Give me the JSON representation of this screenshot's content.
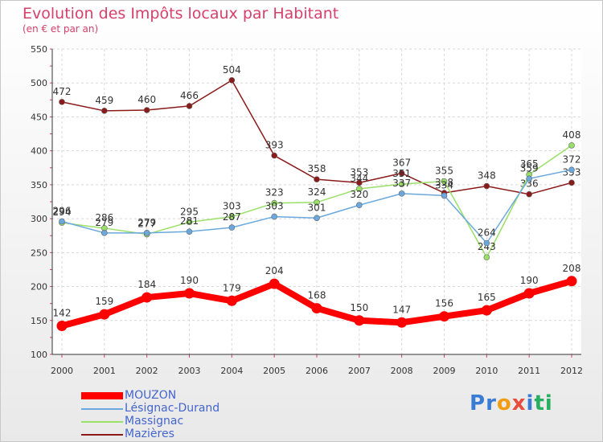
{
  "chart_data": {
    "type": "line",
    "title": "Evolution des Impôts locaux par Habitant",
    "subtitle": "(en € et par an)",
    "categories": [
      "2000",
      "2001",
      "2002",
      "2003",
      "2004",
      "2005",
      "2006",
      "2007",
      "2008",
      "2009",
      "2010",
      "2011",
      "2012"
    ],
    "ylim": [
      100,
      550
    ],
    "yticks": [
      100,
      150,
      200,
      250,
      300,
      350,
      400,
      450,
      500,
      550
    ],
    "grid": true,
    "legend_position": "bottom-left",
    "series": [
      {
        "name": "Mazières",
        "color": "#8b1a1a",
        "values": [
          472,
          459,
          460,
          466,
          504,
          393,
          358,
          353,
          367,
          338,
          348,
          336,
          353
        ]
      },
      {
        "name": "Massignac",
        "color": "#99e066",
        "values": [
          294,
          286,
          277,
          295,
          303,
          323,
          324,
          344,
          351,
          355,
          243,
          365,
          408
        ]
      },
      {
        "name": "Lésignac-Durand",
        "color": "#6aa8dd",
        "values": [
          296,
          279,
          279,
          281,
          287,
          303,
          301,
          320,
          337,
          334,
          264,
          359,
          372
        ]
      },
      {
        "name": "MOUZON",
        "color": "#ff0000",
        "values": [
          142,
          159,
          184,
          190,
          179,
          204,
          168,
          150,
          147,
          156,
          165,
          190,
          208
        ]
      }
    ]
  },
  "legend": [
    {
      "label": "MOUZON",
      "color": "#ff0000"
    },
    {
      "label": "Lésignac-Durand",
      "color": "#6aa8dd"
    },
    {
      "label": "Massignac",
      "color": "#99e066"
    },
    {
      "label": "Mazières",
      "color": "#8b1a1a"
    }
  ],
  "logo": {
    "letters": [
      "P",
      "r",
      "o",
      "x",
      "i",
      "t",
      "i"
    ],
    "colors": [
      "#3a7bd5",
      "#3a7bd5",
      "#f39c12",
      "#e74c3c",
      "#3a7bd5",
      "#27ae60",
      "#27ae60"
    ]
  }
}
